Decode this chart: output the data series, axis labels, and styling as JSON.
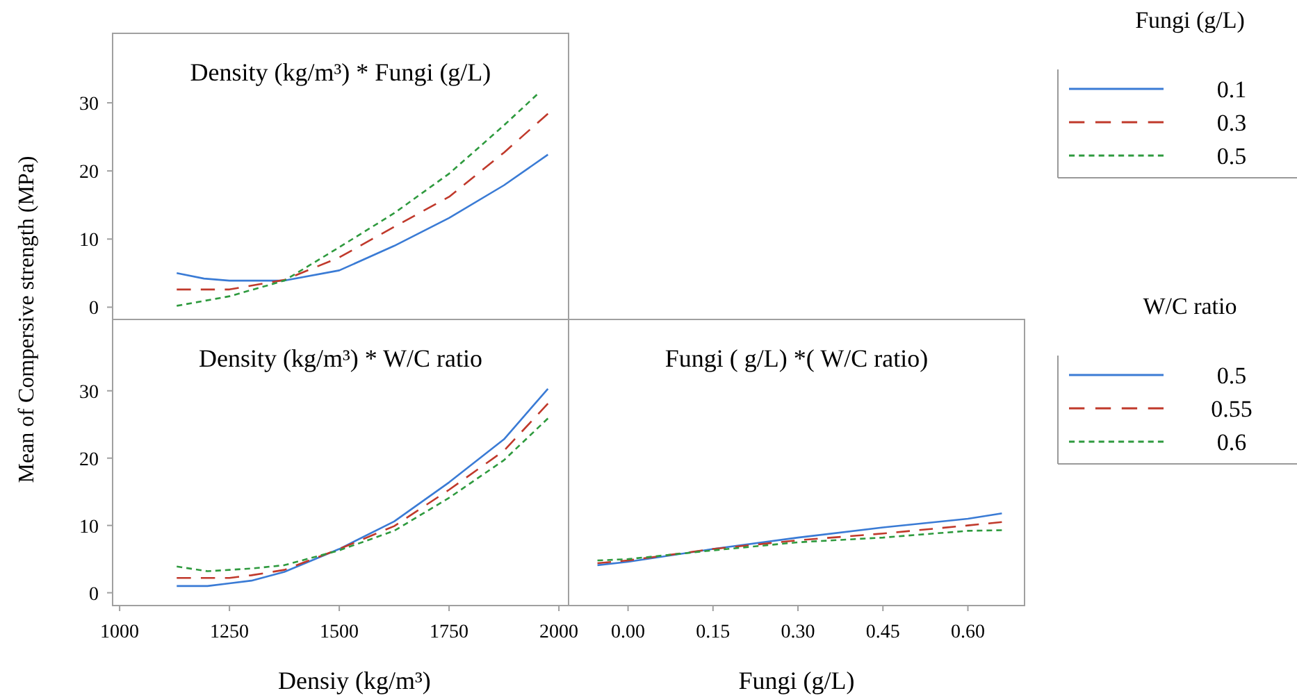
{
  "chart_data": [
    {
      "type": "line",
      "title": "Density (kg/m³) * Fungi  (g/L)",
      "ylabel": "Mean of Compersive strength (MPa)",
      "legend_title": "Fungi (g/L)",
      "legend": "right",
      "tick_labels": "y",
      "xlim": [
        984,
        2022
      ],
      "ylim": [
        -1.8,
        40.2
      ],
      "yticks": [
        0,
        10,
        20,
        30
      ],
      "x": [
        1130,
        1192,
        1250,
        1375,
        1500,
        1625,
        1750,
        1875,
        1975
      ],
      "series": [
        {
          "name": "0.1",
          "color": "#3a7bd5",
          "line_style": "solid",
          "values": [
            5.0,
            4.2,
            3.9,
            3.9,
            5.4,
            9.0,
            13.1,
            17.9,
            22.4
          ]
        },
        {
          "name": "0.3",
          "color": "#c0392b",
          "line_style": "dashed",
          "values": [
            2.6,
            2.6,
            2.6,
            4.0,
            7.3,
            11.8,
            16.2,
            22.7,
            28.4
          ]
        },
        {
          "name": "0.5",
          "color": "#2e9a3e",
          "line_style": "dotted",
          "x": [
            1130,
            1250,
            1375,
            1500,
            1625,
            1750,
            1875,
            1950
          ],
          "values": [
            0.2,
            1.6,
            3.9,
            8.8,
            13.8,
            19.6,
            26.7,
            31.2
          ]
        }
      ]
    },
    {
      "type": "line",
      "title": "Density (kg/m³) * W/C ratio",
      "xlabel": "Densiy  (kg/m³)",
      "xlim": [
        984,
        2022
      ],
      "ylim": [
        -1.9,
        40.6
      ],
      "xticks": [
        1000,
        1250,
        1500,
        1750,
        2000
      ],
      "yticks": [
        0,
        10,
        20,
        30
      ],
      "x": [
        1130,
        1200,
        1250,
        1300,
        1375,
        1500,
        1625,
        1750,
        1875,
        1975
      ],
      "series": [
        {
          "color": "#3a7bd5",
          "line_style": "solid",
          "values": [
            1.0,
            1.0,
            1.4,
            1.8,
            3.1,
            6.5,
            10.6,
            16.4,
            22.8,
            30.3
          ]
        },
        {
          "color": "#c0392b",
          "line_style": "dashed",
          "values": [
            2.2,
            2.2,
            2.2,
            2.6,
            3.4,
            6.5,
            9.9,
            15.3,
            21.1,
            28.1
          ]
        },
        {
          "color": "#2e9a3e",
          "line_style": "dotted",
          "values": [
            3.9,
            3.2,
            3.4,
            3.6,
            4.1,
            6.3,
            9.2,
            14.1,
            19.7,
            25.9
          ]
        }
      ]
    },
    {
      "type": "line",
      "title": "Fungi ( g/L) *( W/C ratio)",
      "xlabel": "Fungi (g/L)",
      "legend_title": "W/C ratio",
      "legend": "right",
      "tick_labels": "x",
      "xlim": [
        -0.105,
        0.7
      ],
      "ylim": [
        -1.9,
        40.6
      ],
      "xticks": [
        {
          "value": 0,
          "label": "0.00"
        },
        {
          "value": 0.15,
          "label": "0.15"
        },
        {
          "value": 0.3,
          "label": "0.30"
        },
        {
          "value": 0.45,
          "label": "0.45"
        },
        {
          "value": 0.6,
          "label": "0.60"
        }
      ],
      "x": [
        -0.054,
        0,
        0.15,
        0.3,
        0.45,
        0.6,
        0.66
      ],
      "series": [
        {
          "name": "0.5",
          "color": "#3a7bd5",
          "line_style": "solid",
          "values": [
            4.1,
            4.6,
            6.5,
            8.2,
            9.7,
            11.0,
            11.8
          ]
        },
        {
          "name": "0.55",
          "color": "#c0392b",
          "line_style": "dashed",
          "values": [
            4.4,
            4.8,
            6.5,
            7.8,
            8.8,
            10.0,
            10.5
          ]
        },
        {
          "name": "0.6",
          "color": "#2e9a3e",
          "line_style": "dotted",
          "values": [
            4.8,
            5.0,
            6.3,
            7.5,
            8.2,
            9.2,
            9.3
          ]
        }
      ]
    }
  ]
}
